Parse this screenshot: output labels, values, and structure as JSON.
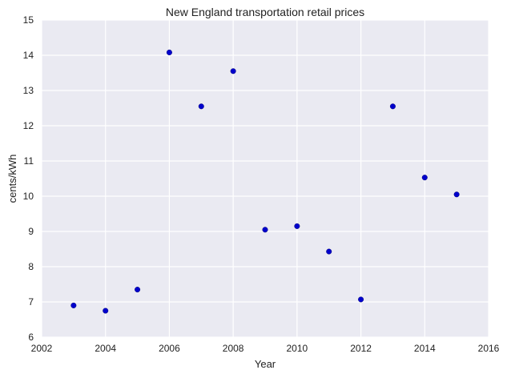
{
  "chart_data": {
    "type": "scatter",
    "title": "New England   transportation retail prices",
    "xlabel": "Year",
    "ylabel": "cents/kWh",
    "xlim": [
      2002,
      2016
    ],
    "ylim": [
      6,
      15
    ],
    "xticks": [
      2002,
      2004,
      2006,
      2008,
      2010,
      2012,
      2014,
      2016
    ],
    "yticks": [
      6,
      7,
      8,
      9,
      10,
      11,
      12,
      13,
      14,
      15
    ],
    "grid": true,
    "colors": {
      "plot_background": "#eaeaf2",
      "grid": "#ffffff",
      "marker": "#0000cc"
    },
    "series": [
      {
        "x": [
          2003,
          2004,
          2005,
          2006,
          2007,
          2008,
          2009,
          2010,
          2011,
          2012,
          2013,
          2014,
          2015
        ],
        "y": [
          6.9,
          6.75,
          7.35,
          14.08,
          12.55,
          13.55,
          9.05,
          9.15,
          8.43,
          7.07,
          12.55,
          10.53,
          10.05
        ]
      }
    ]
  }
}
